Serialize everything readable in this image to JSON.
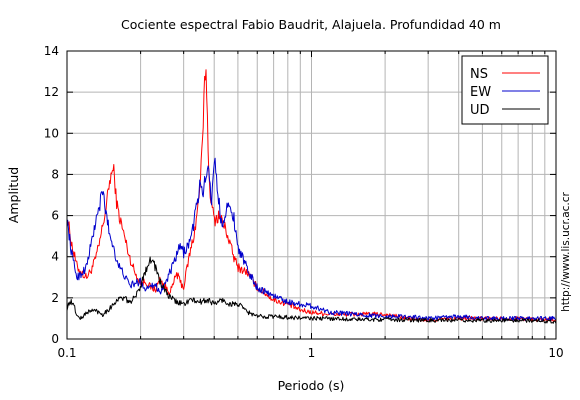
{
  "chart_data": {
    "type": "line",
    "title": "Cociente espectral Fabio Baudrit, Alajuela. Profundidad 40 m",
    "xlabel": "Periodo (s)",
    "ylabel": "Amplitud",
    "xscale": "log",
    "xlim": [
      0.1,
      10
    ],
    "ylim": [
      0,
      14
    ],
    "x_ticks": [
      0.1,
      1,
      10
    ],
    "x_tick_labels": [
      "0.1",
      "1",
      "10"
    ],
    "y_ticks": [
      0,
      2,
      4,
      6,
      8,
      10,
      12,
      14
    ],
    "y_tick_labels": [
      "0",
      "2",
      "4",
      "6",
      "8",
      "10",
      "12",
      "14"
    ],
    "grid": true,
    "legend_position": "top-right",
    "side_note": "http://www.lis.ucr.ac.cr",
    "series": [
      {
        "name": "NS",
        "color": "#ff0000",
        "x": [
          0.1,
          0.105,
          0.11,
          0.115,
          0.12,
          0.125,
          0.13,
          0.135,
          0.14,
          0.145,
          0.15,
          0.155,
          0.16,
          0.165,
          0.17,
          0.18,
          0.19,
          0.2,
          0.21,
          0.22,
          0.23,
          0.24,
          0.25,
          0.26,
          0.27,
          0.28,
          0.29,
          0.3,
          0.31,
          0.32,
          0.33,
          0.34,
          0.35,
          0.36,
          0.365,
          0.37,
          0.375,
          0.38,
          0.39,
          0.4,
          0.42,
          0.45,
          0.48,
          0.5,
          0.55,
          0.6,
          0.65,
          0.7,
          0.8,
          0.9,
          1.0,
          1.2,
          1.5,
          2.0,
          2.5,
          3.0,
          4.0,
          5.0,
          6.0,
          7.0,
          8.0,
          10.0
        ],
        "y": [
          6.0,
          4.5,
          3.5,
          3.2,
          3.0,
          3.3,
          3.8,
          4.5,
          5.5,
          6.5,
          7.8,
          8.3,
          6.5,
          5.8,
          5.2,
          4.0,
          3.2,
          2.7,
          2.8,
          2.5,
          2.4,
          2.9,
          2.6,
          2.3,
          2.5,
          3.2,
          2.8,
          2.5,
          3.5,
          4.3,
          5.0,
          6.0,
          7.5,
          10.0,
          12.5,
          13.1,
          11.0,
          8.0,
          6.5,
          5.8,
          6.0,
          5.2,
          4.0,
          3.5,
          3.2,
          2.5,
          2.2,
          1.9,
          1.7,
          1.4,
          1.3,
          1.2,
          1.2,
          1.2,
          1.0,
          0.9,
          1.0,
          1.0,
          1.0,
          1.0,
          0.95,
          0.95
        ]
      },
      {
        "name": "EW",
        "color": "#0000cc",
        "x": [
          0.1,
          0.105,
          0.11,
          0.115,
          0.12,
          0.125,
          0.13,
          0.135,
          0.14,
          0.145,
          0.15,
          0.155,
          0.16,
          0.165,
          0.17,
          0.18,
          0.19,
          0.2,
          0.21,
          0.22,
          0.23,
          0.24,
          0.25,
          0.27,
          0.29,
          0.3,
          0.32,
          0.34,
          0.35,
          0.36,
          0.38,
          0.39,
          0.4,
          0.41,
          0.42,
          0.43,
          0.45,
          0.48,
          0.5,
          0.55,
          0.6,
          0.7,
          0.8,
          1.0,
          1.2,
          1.5,
          2.0,
          2.5,
          3.0,
          4.0,
          5.0,
          6.0,
          7.0,
          8.0,
          10.0
        ],
        "y": [
          5.8,
          4.0,
          3.0,
          3.2,
          3.5,
          4.5,
          5.5,
          6.3,
          7.2,
          6.0,
          5.0,
          4.5,
          3.8,
          3.4,
          3.2,
          2.6,
          2.7,
          2.8,
          2.4,
          2.7,
          2.6,
          2.3,
          2.6,
          3.5,
          4.5,
          4.2,
          4.8,
          6.5,
          7.5,
          7.2,
          8.5,
          6.5,
          9.0,
          7.5,
          6.5,
          5.5,
          6.5,
          6.0,
          4.5,
          3.3,
          2.5,
          2.1,
          1.8,
          1.6,
          1.3,
          1.2,
          1.1,
          1.1,
          1.0,
          1.1,
          1.0,
          1.0,
          1.0,
          1.0,
          1.0
        ]
      },
      {
        "name": "UD",
        "color": "#000000",
        "x": [
          0.1,
          0.103,
          0.107,
          0.11,
          0.115,
          0.12,
          0.13,
          0.14,
          0.15,
          0.16,
          0.17,
          0.18,
          0.19,
          0.2,
          0.21,
          0.22,
          0.23,
          0.24,
          0.25,
          0.26,
          0.28,
          0.3,
          0.32,
          0.35,
          0.38,
          0.4,
          0.43,
          0.46,
          0.5,
          0.55,
          0.6,
          0.7,
          0.8,
          1.0,
          1.2,
          1.5,
          2.0,
          3.0,
          4.0,
          5.0,
          6.0,
          8.0,
          10.0
        ],
        "y": [
          1.5,
          1.85,
          1.6,
          1.1,
          1.0,
          1.3,
          1.4,
          1.2,
          1.5,
          1.9,
          2.0,
          1.8,
          2.0,
          2.6,
          3.4,
          3.9,
          3.5,
          2.8,
          2.4,
          2.1,
          1.8,
          1.7,
          1.9,
          1.8,
          1.9,
          1.7,
          1.9,
          1.7,
          1.7,
          1.3,
          1.1,
          1.1,
          1.05,
          1.0,
          1.0,
          0.95,
          0.95,
          0.9,
          0.9,
          0.9,
          0.9,
          0.9,
          0.85
        ]
      }
    ]
  }
}
